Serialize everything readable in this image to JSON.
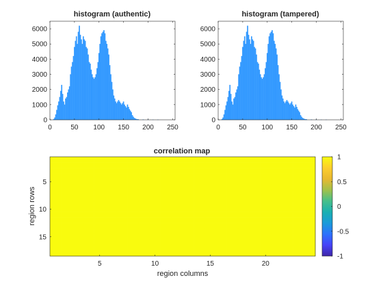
{
  "chart_data": [
    {
      "type": "bar",
      "title": "histogram (authentic)",
      "xlabel": "",
      "ylabel": "",
      "xlim": [
        0,
        255
      ],
      "ylim": [
        0,
        6500
      ],
      "xticks": [
        "0",
        "50",
        "100",
        "150",
        "200",
        "250"
      ],
      "yticks": [
        "0",
        "1000",
        "2000",
        "3000",
        "4000",
        "5000",
        "6000"
      ],
      "bar_color": "#3399ff",
      "bin_width": 2,
      "x": [
        8,
        10,
        12,
        14,
        16,
        18,
        20,
        22,
        24,
        26,
        28,
        30,
        32,
        34,
        36,
        38,
        40,
        42,
        44,
        46,
        48,
        50,
        52,
        54,
        56,
        58,
        60,
        62,
        64,
        66,
        68,
        70,
        72,
        74,
        76,
        78,
        80,
        82,
        84,
        86,
        88,
        90,
        92,
        94,
        96,
        98,
        100,
        102,
        104,
        106,
        108,
        110,
        112,
        114,
        116,
        118,
        120,
        122,
        124,
        126,
        128,
        130,
        132,
        134,
        136,
        138,
        140,
        142,
        144,
        146,
        148,
        150,
        152,
        154,
        156,
        158,
        160,
        162,
        164,
        166,
        168,
        170,
        172,
        174,
        176,
        178,
        180,
        190,
        200,
        210,
        220,
        230,
        240,
        250
      ],
      "values": [
        50,
        150,
        350,
        650,
        950,
        1200,
        1500,
        1900,
        2300,
        1700,
        1200,
        1000,
        1400,
        1500,
        1800,
        2000,
        2200,
        3000,
        3500,
        3800,
        4200,
        4800,
        5200,
        5500,
        5000,
        5800,
        6200,
        5600,
        5300,
        5000,
        5500,
        5300,
        5200,
        4800,
        4700,
        4300,
        3800,
        3700,
        3300,
        3000,
        2800,
        2700,
        2800,
        3000,
        3400,
        3800,
        4400,
        5000,
        5500,
        5700,
        5800,
        5900,
        5700,
        5200,
        5000,
        4700,
        4300,
        3600,
        3000,
        2500,
        2000,
        1600,
        1400,
        1200,
        1100,
        1200,
        1300,
        1200,
        1100,
        1000,
        1100,
        1200,
        1000,
        900,
        800,
        1000,
        850,
        700,
        600,
        500,
        300,
        200,
        120,
        80,
        50,
        40,
        30,
        20,
        10,
        5,
        5,
        0,
        0,
        0
      ]
    },
    {
      "type": "bar",
      "title": "histogram (tampered)",
      "xlabel": "",
      "ylabel": "",
      "xlim": [
        0,
        255
      ],
      "ylim": [
        0,
        6500
      ],
      "xticks": [
        "0",
        "50",
        "100",
        "150",
        "200",
        "250"
      ],
      "yticks": [
        "0",
        "1000",
        "2000",
        "3000",
        "4000",
        "5000",
        "6000"
      ],
      "bar_color": "#3399ff",
      "bin_width": 2,
      "x": [
        8,
        10,
        12,
        14,
        16,
        18,
        20,
        22,
        24,
        26,
        28,
        30,
        32,
        34,
        36,
        38,
        40,
        42,
        44,
        46,
        48,
        50,
        52,
        54,
        56,
        58,
        60,
        62,
        64,
        66,
        68,
        70,
        72,
        74,
        76,
        78,
        80,
        82,
        84,
        86,
        88,
        90,
        92,
        94,
        96,
        98,
        100,
        102,
        104,
        106,
        108,
        110,
        112,
        114,
        116,
        118,
        120,
        122,
        124,
        126,
        128,
        130,
        132,
        134,
        136,
        138,
        140,
        142,
        144,
        146,
        148,
        150,
        152,
        154,
        156,
        158,
        160,
        162,
        164,
        166,
        168,
        170,
        172,
        174,
        176,
        178,
        180,
        190,
        200,
        210,
        220,
        230,
        240,
        250
      ],
      "values": [
        50,
        150,
        350,
        650,
        950,
        1200,
        1500,
        1900,
        2300,
        1700,
        1200,
        1000,
        1400,
        1500,
        1800,
        2000,
        2200,
        3000,
        3500,
        3800,
        4200,
        4800,
        5200,
        5500,
        5000,
        5800,
        6200,
        5600,
        5300,
        5000,
        5500,
        5300,
        5200,
        4800,
        4700,
        4300,
        3800,
        3700,
        3300,
        3000,
        2800,
        2700,
        2800,
        3000,
        3400,
        3800,
        4400,
        5000,
        5500,
        5700,
        5800,
        5900,
        5700,
        5200,
        5000,
        4700,
        4300,
        3600,
        3000,
        2500,
        2000,
        1600,
        1400,
        1200,
        1100,
        1200,
        1300,
        1200,
        1100,
        1000,
        1100,
        1200,
        1000,
        900,
        800,
        1000,
        850,
        700,
        600,
        500,
        300,
        200,
        120,
        80,
        50,
        40,
        30,
        20,
        10,
        5,
        5,
        0,
        0,
        0
      ]
    },
    {
      "type": "heatmap",
      "title": "correlation map",
      "xlabel": "region columns",
      "ylabel": "region rows",
      "rows": 18,
      "cols": 24,
      "fill_value": 1,
      "fill_color": "#f9fb0e",
      "xticks": [
        "5",
        "10",
        "15",
        "20"
      ],
      "yticks": [
        "5",
        "10",
        "15"
      ],
      "colorbar": {
        "range": [
          -1,
          1
        ],
        "ticks": [
          "1",
          "0.5",
          "0",
          "-0.5",
          "-1"
        ],
        "colormap": [
          "#3e26a8",
          "#4743f8",
          "#2c72fd",
          "#1a9bd9",
          "#1ab0b1",
          "#47bf8a",
          "#a2c14a",
          "#e9b92f",
          "#fcce2e",
          "#f9fb0e"
        ]
      }
    }
  ]
}
